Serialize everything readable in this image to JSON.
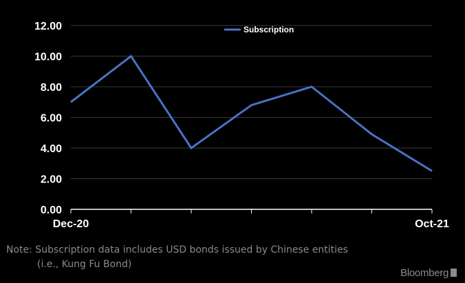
{
  "chart_data": {
    "type": "line",
    "x": [
      "Dec-20",
      "",
      "",
      "",
      "",
      "",
      "Oct-21"
    ],
    "x_tick_labels": [
      "Dec-20",
      "Oct-21"
    ],
    "series": [
      {
        "name": "Subscription",
        "values": [
          7.0,
          10.0,
          4.0,
          6.8,
          8.0,
          4.9,
          2.5
        ],
        "color": "#4a72c4"
      }
    ],
    "ylim": [
      0,
      12
    ],
    "y_ticks": [
      "0.00",
      "2.00",
      "4.00",
      "6.00",
      "8.00",
      "10.00",
      "12.00"
    ],
    "grid": true,
    "legend": "top-center"
  },
  "note": {
    "line1": "Note: Subscription data includes USD bonds issued by Chinese entities",
    "line2": "(i.e., Kung Fu Bond)"
  },
  "brand": "Bloomberg"
}
